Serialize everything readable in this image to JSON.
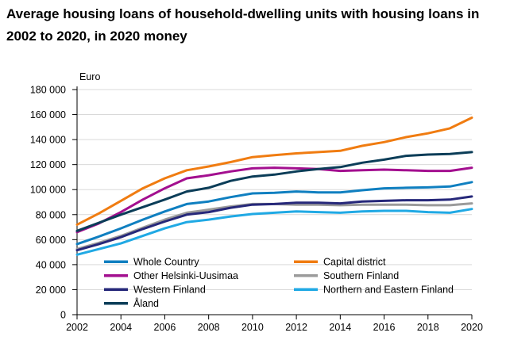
{
  "chart_data": {
    "type": "line",
    "title": "Average housing loans of household-dwelling units with housing loans in 2002 to 2020, in 2020 money",
    "ylabel": "Euro",
    "xlabel": "",
    "x": [
      2002,
      2003,
      2004,
      2005,
      2006,
      2007,
      2008,
      2009,
      2010,
      2011,
      2012,
      2013,
      2014,
      2015,
      2016,
      2017,
      2018,
      2019,
      2020
    ],
    "xticks": [
      "2002",
      "2004",
      "2006",
      "2008",
      "2010",
      "2012",
      "2014",
      "2016",
      "2018",
      "2020"
    ],
    "yticks": [
      "0",
      "20 000",
      "40 000",
      "60 000",
      "80 000",
      "100 000",
      "120 000",
      "140 000",
      "160 000",
      "180 000"
    ],
    "xlim": [
      2002,
      2020
    ],
    "ylim": [
      0,
      180000
    ],
    "grid": "horizontal",
    "legend_position": "bottom-inside",
    "series": [
      {
        "name": "Whole Country",
        "color": "#0f7fc0",
        "values": [
          56500,
          62500,
          69000,
          76000,
          82500,
          88500,
          90500,
          94000,
          97000,
          97500,
          98500,
          97800,
          97800,
          99500,
          101000,
          101500,
          101800,
          102500,
          106000
        ]
      },
      {
        "name": "Capital district",
        "color": "#f07c11",
        "values": [
          72000,
          81000,
          91000,
          101000,
          109000,
          115500,
          118500,
          122000,
          126000,
          127500,
          129000,
          130000,
          131000,
          135000,
          138000,
          142000,
          145000,
          149000,
          157500
        ]
      },
      {
        "name": "Other Helsinki-Uusimaa",
        "color": "#a30f8f",
        "values": [
          66000,
          73000,
          82000,
          92000,
          101000,
          109000,
          111500,
          114500,
          117000,
          117500,
          117000,
          116500,
          115000,
          115500,
          116000,
          115500,
          115000,
          115000,
          117500
        ]
      },
      {
        "name": "Southern Finland",
        "color": "#9b9b9b",
        "values": [
          52500,
          57500,
          63000,
          69500,
          76000,
          81500,
          84000,
          86500,
          88500,
          88500,
          88000,
          88000,
          87500,
          88000,
          88000,
          88000,
          87500,
          87500,
          89000
        ]
      },
      {
        "name": "Western Finland",
        "color": "#26287a",
        "values": [
          51500,
          56500,
          62000,
          68500,
          74500,
          80000,
          82000,
          85500,
          88000,
          88500,
          89500,
          89500,
          89000,
          90500,
          91000,
          91500,
          91500,
          92000,
          94500
        ]
      },
      {
        "name": "Northern and Eastern Finland",
        "color": "#20a9e4",
        "values": [
          48000,
          52500,
          57000,
          63000,
          69000,
          74000,
          76000,
          78500,
          80500,
          81500,
          82500,
          82000,
          81500,
          82500,
          83000,
          83000,
          82000,
          81500,
          84500
        ]
      },
      {
        "name": "Åland",
        "color": "#0b3d58",
        "values": [
          67000,
          73500,
          80000,
          86000,
          92000,
          98500,
          101500,
          107000,
          110500,
          112000,
          114500,
          116500,
          118000,
          121500,
          124000,
          127000,
          128000,
          128500,
          130000
        ]
      }
    ]
  }
}
